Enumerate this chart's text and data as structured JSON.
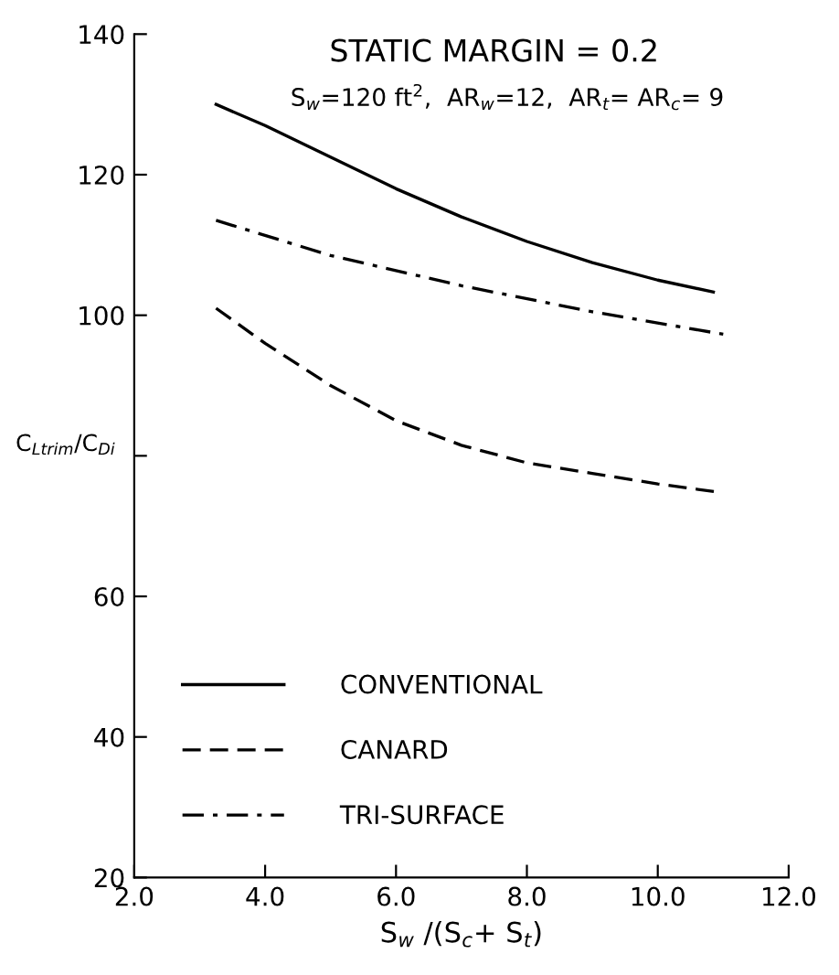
{
  "chart_data": {
    "type": "line",
    "title": "STATIC MARGIN = 0.2",
    "subtitle": "S$_{w}$=120 ft$^{2}$,  AR$_{w}$=12,  AR$_{t}$= AR$_{c}$= 9",
    "xlabel": "S$_{w}$ /(S$_{c}$+ S$_{t}$)",
    "ylabel": "C$_{Ltrim}$/C$_{Di}$",
    "series": [
      {
        "name": "CONVENTIONAL",
        "color": "#000000",
        "line_style": "solid",
        "x": [
          3.25,
          4,
          5,
          6,
          7,
          8,
          9,
          10,
          10.85
        ],
        "values": [
          130,
          127,
          122.5,
          118,
          114,
          110.5,
          107.5,
          105,
          103.3
        ]
      },
      {
        "name": "CANARD",
        "color": "#000000",
        "line_style": "dashed",
        "x": [
          3.25,
          4,
          5,
          6,
          7,
          8,
          9,
          10,
          10.95
        ],
        "values": [
          101,
          96,
          90,
          85,
          81.5,
          79,
          77.5,
          76,
          74.8
        ]
      },
      {
        "name": "TRI-SURFACE",
        "color": "#000000",
        "line_style": "dashdot",
        "x": [
          3.25,
          5,
          7,
          9,
          11
        ],
        "values": [
          113.5,
          108.5,
          104.2,
          100.5,
          97.3
        ]
      }
    ],
    "xlim": [
      2,
      12
    ],
    "xticks": [
      {
        "value": 2,
        "label": "2.0"
      },
      {
        "value": 4,
        "label": "4.0"
      },
      {
        "value": 6,
        "label": "6.0"
      },
      {
        "value": 8,
        "label": "8.0"
      },
      {
        "value": 10,
        "label": "10.0"
      },
      {
        "value": 12,
        "label": "12.0"
      }
    ],
    "ylim": [
      20,
      140
    ],
    "yticks": [
      20,
      40,
      60,
      {
        "value": 80,
        "label": null
      },
      100,
      120,
      140
    ],
    "grid": false,
    "legend": "bottom left",
    "marker": "none"
  }
}
